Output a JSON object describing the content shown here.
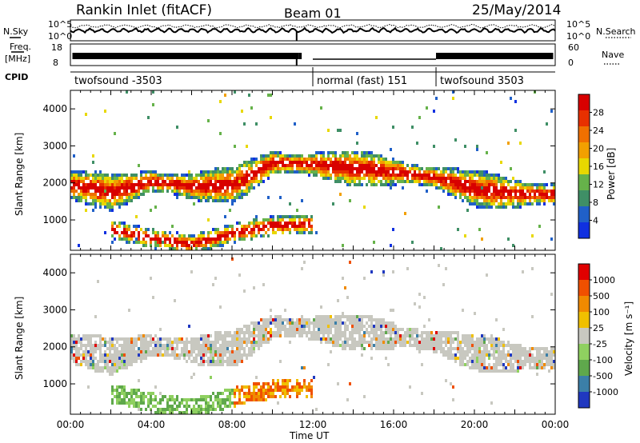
{
  "header": {
    "title": "Rankin Inlet (fitACF)",
    "beam": "Beam 01",
    "date": "25/May/2014"
  },
  "strips": {
    "nsky_label": "N.Sky",
    "nsearch_label": "N.Search",
    "freq_label_1": "Freq.",
    "freq_label_2": "[MHz]",
    "nave_label": "Nave",
    "cpid_label": "CPID",
    "left_top_tick": "10^5",
    "left_bottom_tick": "10^0",
    "right_top_tick": "10^5",
    "right_bottom_tick": "10^0",
    "freq_ticks": [
      "18",
      "8"
    ],
    "nave_ticks": [
      "60",
      "0"
    ]
  },
  "cpid_segments": [
    {
      "label": "twofsound -3503",
      "start_hour": 0
    },
    {
      "label": "normal (fast) 151",
      "start_hour": 12.0
    },
    {
      "label": "twofsound 3503",
      "start_hour": 18.1
    }
  ],
  "colors": {
    "power_scale": [
      "#1030e0",
      "#2060c8",
      "#3f8f66",
      "#66b24a",
      "#e8d800",
      "#f2a000",
      "#f07000",
      "#e83000",
      "#d80000"
    ],
    "velocity_scale": [
      "#2038c0",
      "#3b7fa8",
      "#5fa84c",
      "#8fd060",
      "#c8c8c0",
      "#f0c000",
      "#f08a00",
      "#f05000",
      "#e00000"
    ]
  },
  "chart_data": [
    {
      "type": "heatmap",
      "name": "Power",
      "xlabel": "",
      "ylabel": "Slant Range [km]",
      "xlim": [
        0,
        24
      ],
      "ylim": [
        180,
        4500
      ],
      "yticks": [
        1000,
        2000,
        3000,
        4000
      ],
      "colorbar": {
        "label": "Power [dB]",
        "ticks": [
          "4",
          "8",
          "12",
          "16",
          "20",
          "24",
          "28"
        ]
      },
      "echo_bands": [
        {
          "x": [
            0,
            2,
            4,
            6,
            8,
            9.5,
            10,
            12,
            14,
            16,
            18,
            20,
            22,
            24
          ],
          "y": [
            1900,
            1700,
            2000,
            1850,
            1900,
            2350,
            2500,
            2450,
            2350,
            2250,
            2100,
            1800,
            1650,
            1650
          ]
        },
        {
          "x": [
            2,
            4,
            6,
            8,
            10,
            12
          ],
          "y": [
            700,
            450,
            300,
            600,
            800,
            850
          ]
        }
      ]
    },
    {
      "type": "heatmap",
      "name": "Velocity",
      "xlabel": "Time UT",
      "ylabel": "Slant Range [km]",
      "xlim": [
        0,
        24
      ],
      "ylim": [
        180,
        4500
      ],
      "yticks": [
        1000,
        2000,
        3000,
        4000
      ],
      "xticks": [
        "00:00",
        "04:00",
        "08:00",
        "12:00",
        "16:00",
        "20:00",
        "00:00"
      ],
      "colorbar": {
        "label": "Velocity [m s⁻¹]",
        "ticks": [
          "-1000",
          "-500",
          "-100",
          "-25",
          "25",
          "100",
          "500",
          "1000"
        ]
      }
    }
  ]
}
